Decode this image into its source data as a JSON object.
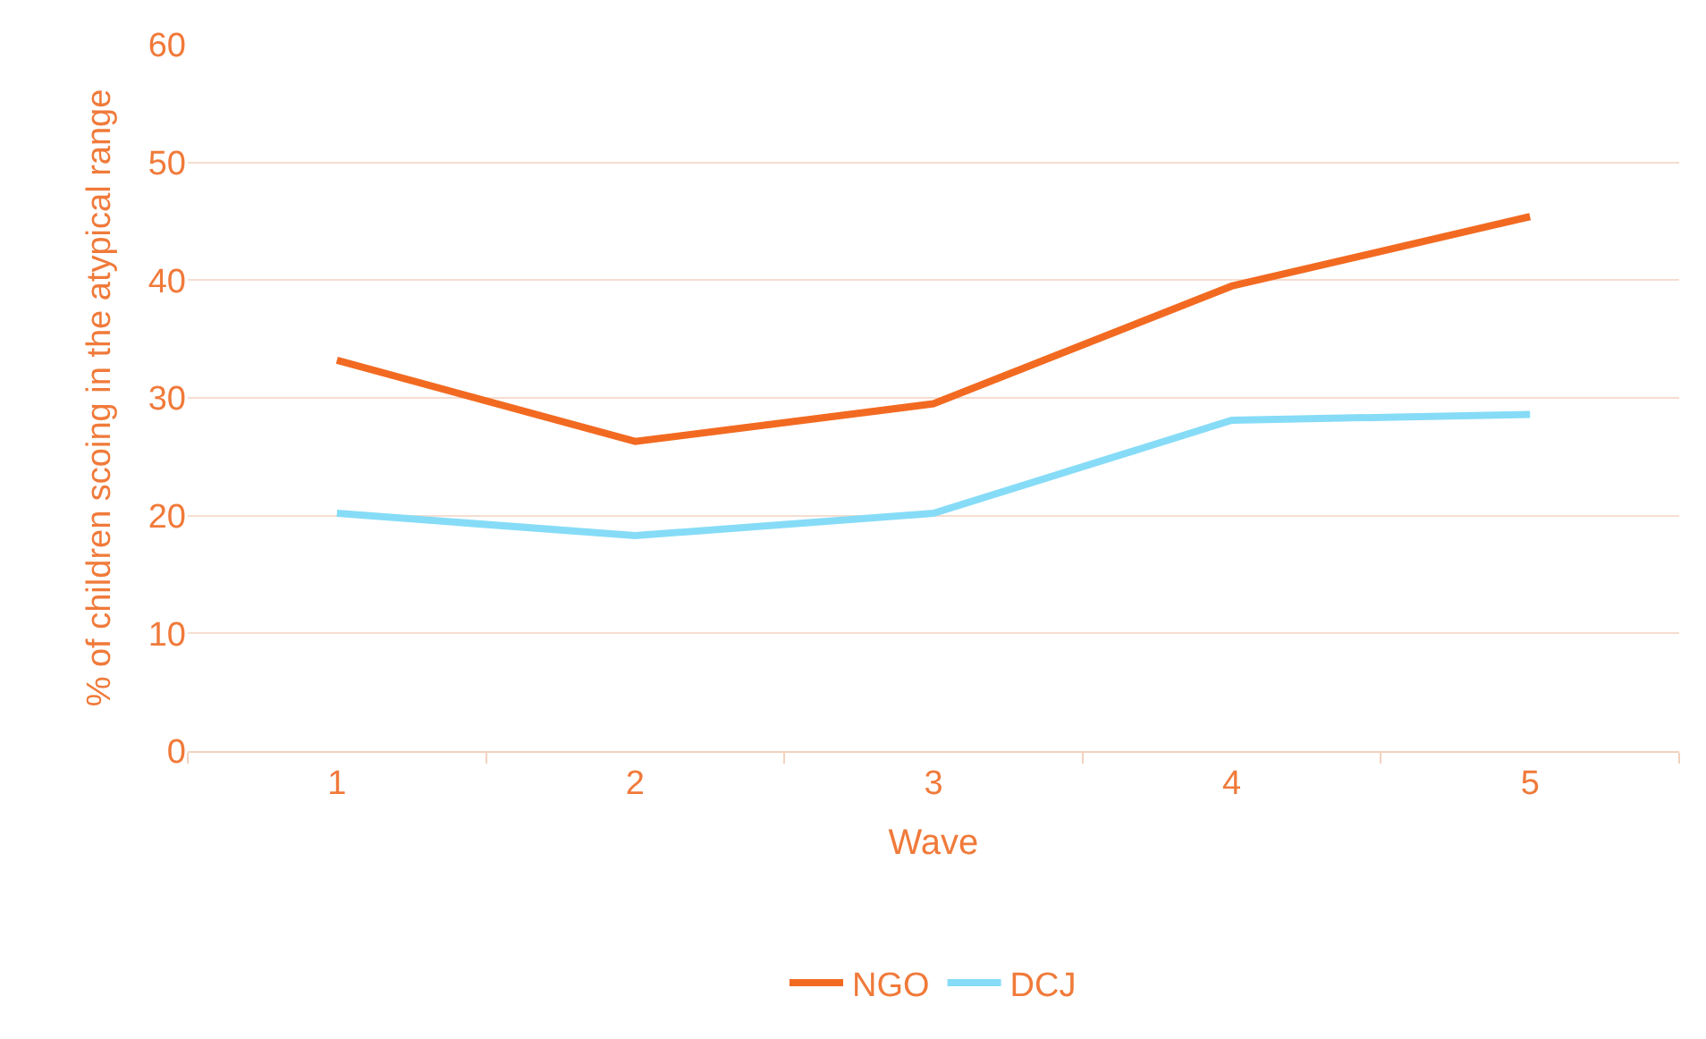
{
  "chart_data": {
    "type": "line",
    "xlabel": "Wave",
    "ylabel": "% of children scoing in the atypical range",
    "categories": [
      "1",
      "2",
      "3",
      "4",
      "5"
    ],
    "series": [
      {
        "name": "NGO",
        "color": "#f26a21",
        "values": [
          33.2,
          26.3,
          29.5,
          39.5,
          45.4
        ]
      },
      {
        "name": "DCJ",
        "color": "#86dcf7",
        "values": [
          20.2,
          18.3,
          20.2,
          28.1,
          28.6
        ]
      }
    ],
    "ylim": [
      0,
      60
    ],
    "yticks": [
      0,
      10,
      20,
      30,
      40,
      50,
      60
    ],
    "grid": "y",
    "legend": "bottom",
    "marker": "none",
    "line_style": "solid"
  }
}
